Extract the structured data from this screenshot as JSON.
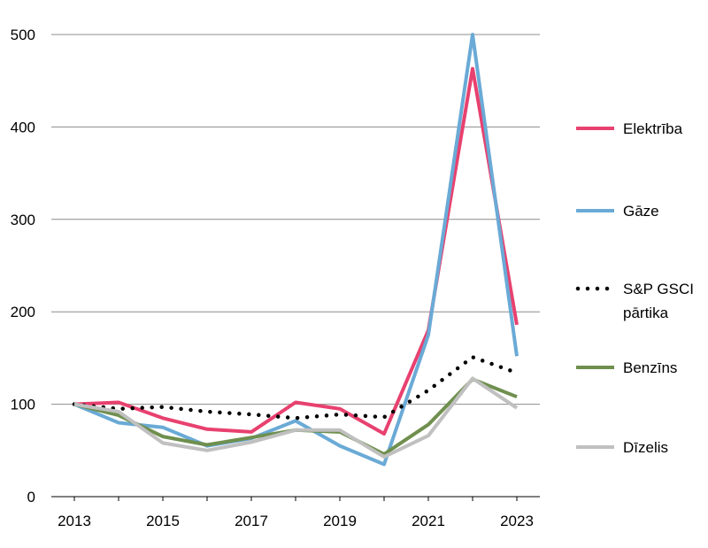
{
  "chart_data": {
    "type": "line",
    "title": "",
    "xlabel": "",
    "ylabel": "",
    "x": [
      2013,
      2014,
      2015,
      2016,
      2017,
      2018,
      2019,
      2020,
      2021,
      2022,
      2023
    ],
    "x_tick_labels": [
      "2013",
      "2015",
      "2017",
      "2019",
      "2021",
      "2023"
    ],
    "y_tick_labels": [
      "0",
      "100",
      "200",
      "300",
      "400",
      "500"
    ],
    "xlim": [
      2013,
      2023
    ],
    "ylim": [
      0,
      500
    ],
    "grid": "horizontal",
    "legend_position": "right",
    "series": [
      {
        "name": "Elektrība",
        "color": "#e8416f",
        "style": "solid",
        "values": [
          100,
          102,
          85,
          73,
          70,
          102,
          95,
          68,
          180,
          463,
          186
        ]
      },
      {
        "name": "Gāze",
        "color": "#6aaad6",
        "style": "solid",
        "values": [
          100,
          80,
          75,
          55,
          63,
          82,
          55,
          35,
          175,
          500,
          152
        ]
      },
      {
        "name": "S&P GSCI pārtika",
        "legend_lines": [
          "S&P GSCI",
          "pārtika"
        ],
        "color": "#000000",
        "style": "dotted",
        "values": [
          100,
          95,
          97,
          92,
          89,
          85,
          89,
          86,
          115,
          151,
          134
        ]
      },
      {
        "name": "Benzīns",
        "color": "#6f8f4e",
        "style": "solid",
        "values": [
          100,
          88,
          65,
          56,
          64,
          72,
          70,
          46,
          78,
          127,
          108
        ]
      },
      {
        "name": "Dīzelis",
        "color": "#c0c0c0",
        "style": "solid",
        "values": [
          100,
          92,
          58,
          50,
          59,
          72,
          72,
          43,
          66,
          128,
          96
        ]
      }
    ]
  }
}
